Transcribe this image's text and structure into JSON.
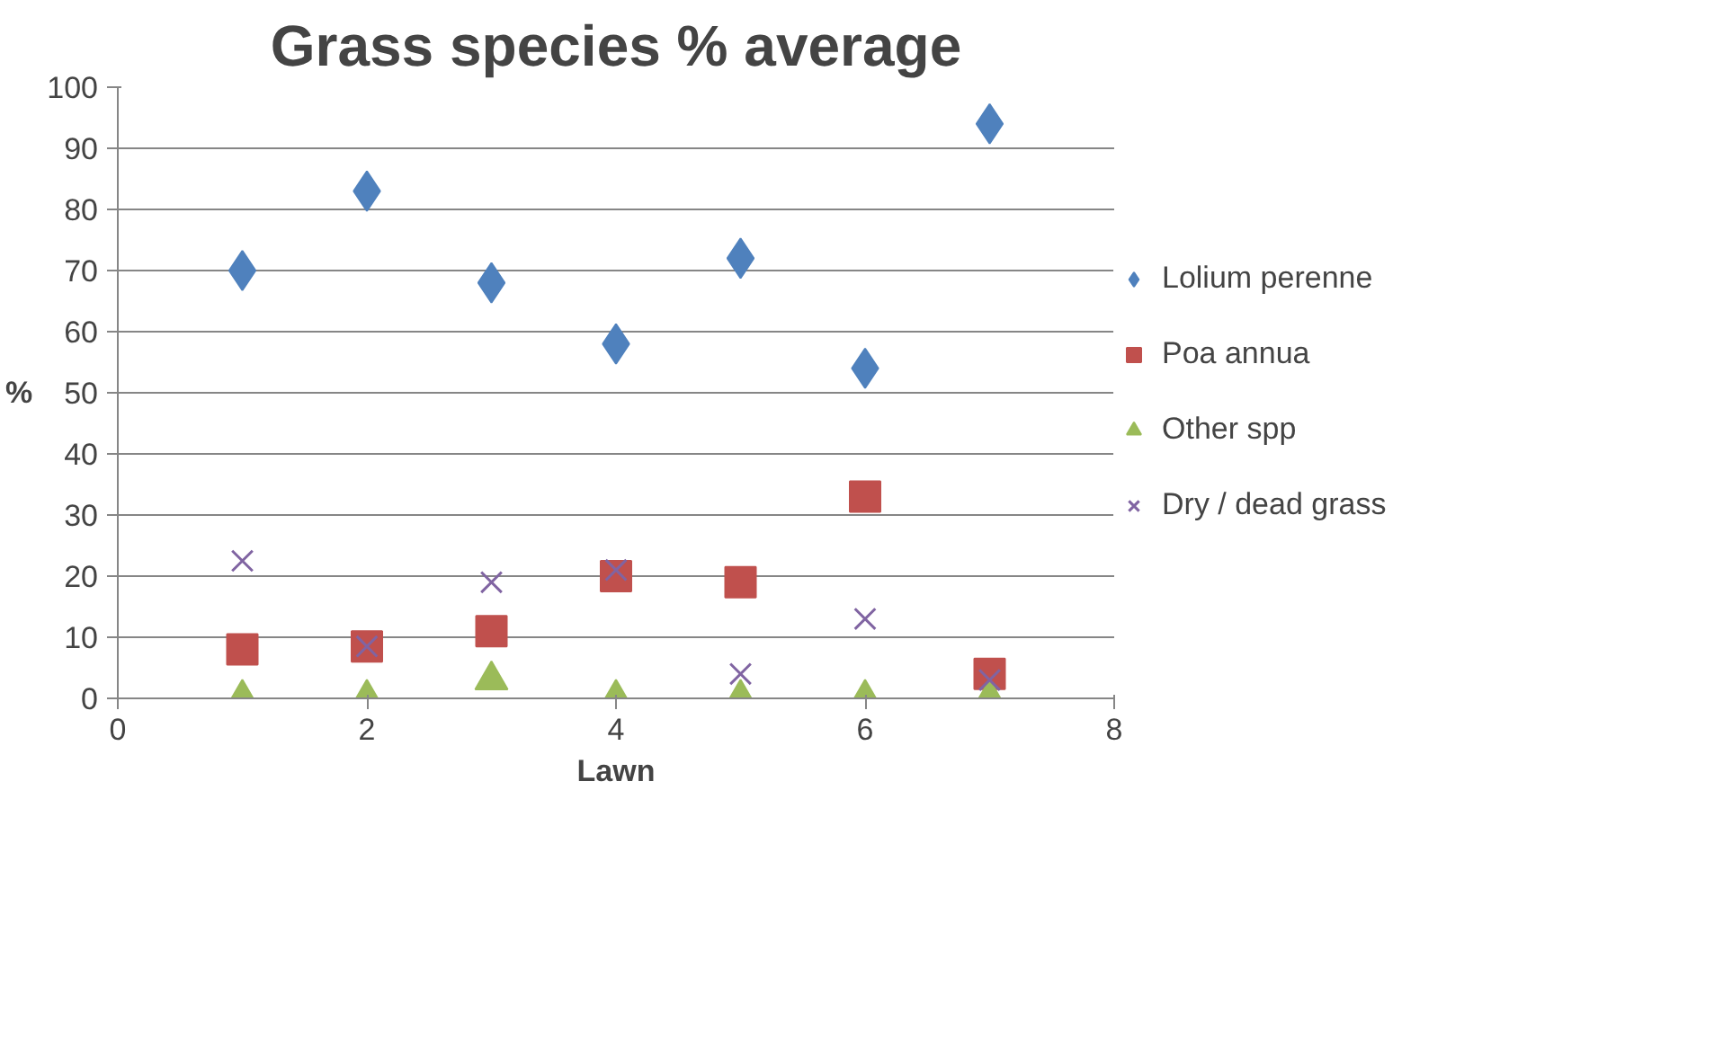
{
  "chart_data": {
    "type": "scatter",
    "title": "Grass species % average",
    "xlabel": "Lawn",
    "ylabel": "%",
    "series": [
      {
        "name": "Lolium perenne",
        "color": "#4f81bd",
        "marker": "diamond",
        "x": [
          1,
          2,
          3,
          4,
          5,
          6,
          7
        ],
        "values": [
          70,
          83,
          68,
          58,
          72,
          54,
          94
        ]
      },
      {
        "name": "Poa annua",
        "color": "#c0504d",
        "marker": "square",
        "x": [
          1,
          2,
          3,
          4,
          5,
          6,
          7
        ],
        "values": [
          8,
          8.5,
          11,
          20,
          19,
          33,
          4
        ]
      },
      {
        "name": "Other spp",
        "color": "#9bbb59",
        "marker": "triangle",
        "x": [
          1,
          2,
          3,
          4,
          5,
          6,
          7
        ],
        "values": [
          0,
          0,
          3,
          0,
          0,
          0,
          0
        ]
      },
      {
        "name": "Dry / dead grass",
        "color": "#8064a2",
        "marker": "cross",
        "x": [
          1,
          2,
          3,
          4,
          5,
          6,
          7
        ],
        "values": [
          22.5,
          8.5,
          19,
          21,
          4,
          13,
          3
        ]
      }
    ],
    "xlim": [
      0,
      8
    ],
    "xticks": [
      0,
      2,
      4,
      6,
      8
    ],
    "ylim": [
      0,
      100
    ],
    "yticks": [
      0,
      10,
      20,
      30,
      40,
      50,
      60,
      70,
      80,
      90,
      100
    ],
    "grid": "y",
    "legend": "right"
  }
}
